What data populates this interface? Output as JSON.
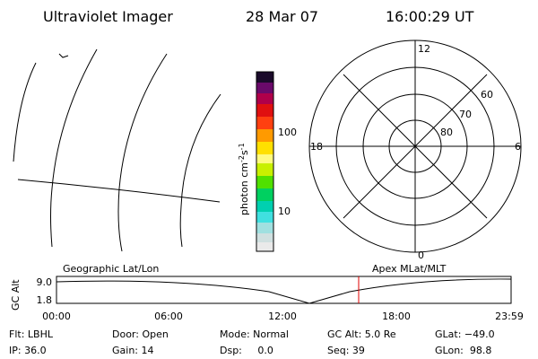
{
  "header": {
    "title": "Ultraviolet Imager",
    "date": "28 Mar 07",
    "time": "16:00:29 UT"
  },
  "colorbar": {
    "label": {
      "base": "photon cm",
      "exp1": "-2",
      "unit2": "s",
      "exp2": "-1"
    },
    "ticks": [
      "100",
      "10"
    ]
  },
  "polar": {
    "mlt_labels": [
      "12",
      "18",
      "6",
      "0"
    ],
    "lat_labels": [
      "60",
      "70",
      "80"
    ]
  },
  "timeline": {
    "left_title": "Geographic Lat/Lon",
    "right_title": "Apex MLat/MLT",
    "axis_label": "GC Alt",
    "y_labels": [
      "9.0",
      "1.8"
    ],
    "x_labels": [
      "00:00",
      "06:00",
      "12:00",
      "18:00",
      "23:59"
    ]
  },
  "info": {
    "rows": [
      [
        "Flt: LBHL",
        "Door: Open",
        "Mode: Normal",
        "GC Alt: 5.0 Re",
        "GLat: −49.0"
      ],
      [
        "IP: 36.0",
        "Gain: 14",
        "Dsp:     0.0",
        "Seq: 39",
        "GLon:  98.8"
      ]
    ]
  }
}
